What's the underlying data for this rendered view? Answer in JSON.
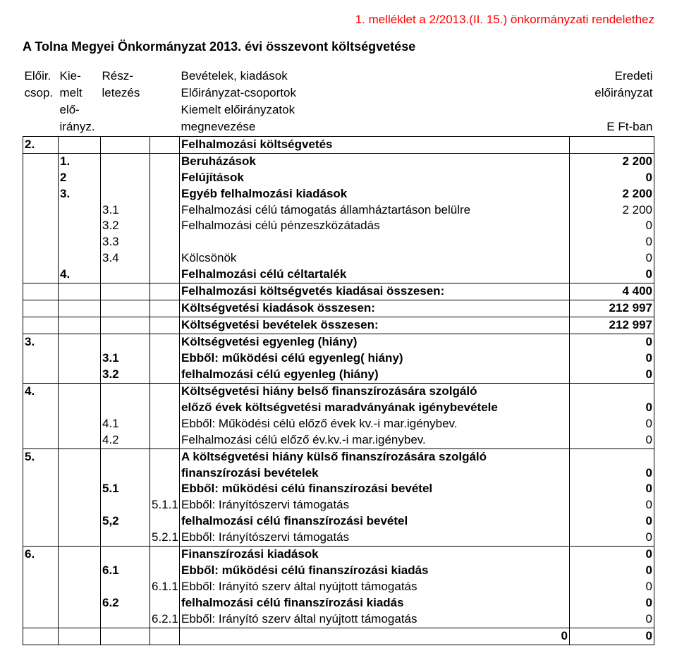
{
  "attachment_line": "1. melléklet a 2/2013.(II. 15.) önkormányzati rendelethez",
  "title": "A Tolna Megyei Önkormányzat 2013. évi összevont költségvetése",
  "header": {
    "c1_l1": "Előir.",
    "c1_l2": "csop.",
    "c2_l1": "Kie-",
    "c2_l2": "melt",
    "c2_l3": "elő-",
    "c2_l4": "irányz.",
    "c3_l1": "Rész-",
    "c3_l2": "letezés",
    "c5_l1": "Bevételek, kiadások",
    "c5_l2": "Előirányzat-csoportok",
    "c5_l3": "Kiemelt előirányzatok",
    "c5_l4": "megnevezése",
    "c6_l1": "Eredeti",
    "c6_l2": "előirányzat",
    "c6_l4": "E Ft-ban"
  },
  "rows": [
    {
      "c": [
        "2.",
        "",
        "",
        "",
        "Felhalmozási költségvetés",
        ""
      ],
      "bold": true,
      "start": true,
      "end": true
    },
    {
      "c": [
        "",
        "1.",
        "",
        "",
        "Beruházások",
        "2 200"
      ],
      "bold": true,
      "start": true
    },
    {
      "c": [
        "",
        "2",
        "",
        "",
        "Felújítások",
        "0"
      ],
      "bold": true
    },
    {
      "c": [
        "",
        "3.",
        "",
        "",
        "Egyéb felhalmozási kiadások",
        "2 200"
      ],
      "bold": true
    },
    {
      "c": [
        "",
        "",
        "3.1",
        "",
        "Felhalmozási célú támogatás államháztartáson belülre",
        "2 200"
      ]
    },
    {
      "c": [
        "",
        "",
        "3.2",
        "",
        "Felhalmozási célú pénzeszközátadás",
        "0"
      ]
    },
    {
      "c": [
        "",
        "",
        "3.3",
        "",
        "",
        "0"
      ]
    },
    {
      "c": [
        "",
        "",
        "3.4",
        "",
        "Kölcsönök",
        "0"
      ]
    },
    {
      "c": [
        "",
        "4.",
        "",
        "",
        "Felhalmozási célú céltartalék",
        "0"
      ],
      "bold": true,
      "end": true
    },
    {
      "c": [
        "",
        "",
        "",
        "",
        "Felhalmozási költségvetés kiadásai összesen:",
        "4 400"
      ],
      "bold": true,
      "start": true,
      "end": true
    },
    {
      "c": [
        "",
        "",
        "",
        "",
        "Költségvetési kiadások összesen:",
        "212 997"
      ],
      "bold": true,
      "start": true,
      "end": true
    },
    {
      "c": [
        "",
        "",
        "",
        "",
        "Költségvetési bevételek összesen:",
        "212 997"
      ],
      "bold": true,
      "start": true,
      "end": true
    },
    {
      "c": [
        "3.",
        "",
        "",
        "",
        "Költségvetési  egyenleg (hiány)",
        "0"
      ],
      "bold": true,
      "start": true
    },
    {
      "c": [
        "",
        "",
        "3.1",
        "",
        "Ebből: működési célú egyenleg( hiány)",
        "0"
      ],
      "bold": true
    },
    {
      "c": [
        "",
        "",
        "3.2",
        "",
        "felhalmozási célú egyenleg (hiány)",
        "0"
      ],
      "bold": true,
      "end": true
    },
    {
      "c": [
        "4.",
        "",
        "",
        "",
        "Költségvetési hiány belső finanszírozására szolgáló",
        ""
      ],
      "bold": true,
      "start": true
    },
    {
      "c": [
        "",
        "",
        "",
        "",
        "előző évek költségvetési maradványának igénybevétele",
        "0"
      ],
      "bold": true
    },
    {
      "c": [
        "",
        "",
        "4.1",
        "",
        "Ebből: Működési célú előző évek  kv.-i mar.igénybev.",
        "0"
      ]
    },
    {
      "c": [
        "",
        "",
        "4.2",
        "",
        "Felhalmozási célú előző év.kv.-i mar.igénybev.",
        "0"
      ],
      "end": true
    },
    {
      "c": [
        "5.",
        "",
        "",
        "",
        "A költségvetési hiány külső finanszírozására szolgáló",
        ""
      ],
      "bold": true,
      "start": true
    },
    {
      "c": [
        "",
        "",
        "",
        "",
        "finanszírozási bevételek",
        "0"
      ],
      "bold": true
    },
    {
      "c": [
        "",
        "",
        "5.1",
        "",
        "Ebből: működési célú finanszírozási bevétel",
        "0"
      ],
      "bold": true
    },
    {
      "c": [
        "",
        "",
        "",
        "5.1.1",
        "Ebből: Irányítószervi támogatás",
        "0"
      ]
    },
    {
      "c": [
        "",
        "",
        "5,2",
        "",
        "felhalmozási célú finanszírozási bevétel",
        "0"
      ],
      "bold": true
    },
    {
      "c": [
        "",
        "",
        "",
        "5.2.1",
        "Ebből: Irányítószervi támogatás",
        "0"
      ],
      "end": true
    },
    {
      "c": [
        "6.",
        "",
        "",
        "",
        "Finanszírozási kiadások",
        "0"
      ],
      "bold": true,
      "start": true
    },
    {
      "c": [
        "",
        "",
        "6.1",
        "",
        "Ebből: működési célú finanszírozási kiadás",
        "0"
      ],
      "bold": true
    },
    {
      "c": [
        "",
        "",
        "",
        "6.1.1",
        "Ebből: Irányító szerv által nyújtott támogatás",
        "0"
      ]
    },
    {
      "c": [
        "",
        "",
        "6.2",
        "",
        "felhalmozási célú finanszírozási kiadás",
        "0"
      ],
      "bold": true
    },
    {
      "c": [
        "",
        "",
        "",
        "6.2.1",
        "Ebből: Irányító szerv által nyújtott támogatás",
        "0"
      ],
      "end": true
    }
  ],
  "footer": {
    "v1": "0",
    "v2": "0"
  }
}
